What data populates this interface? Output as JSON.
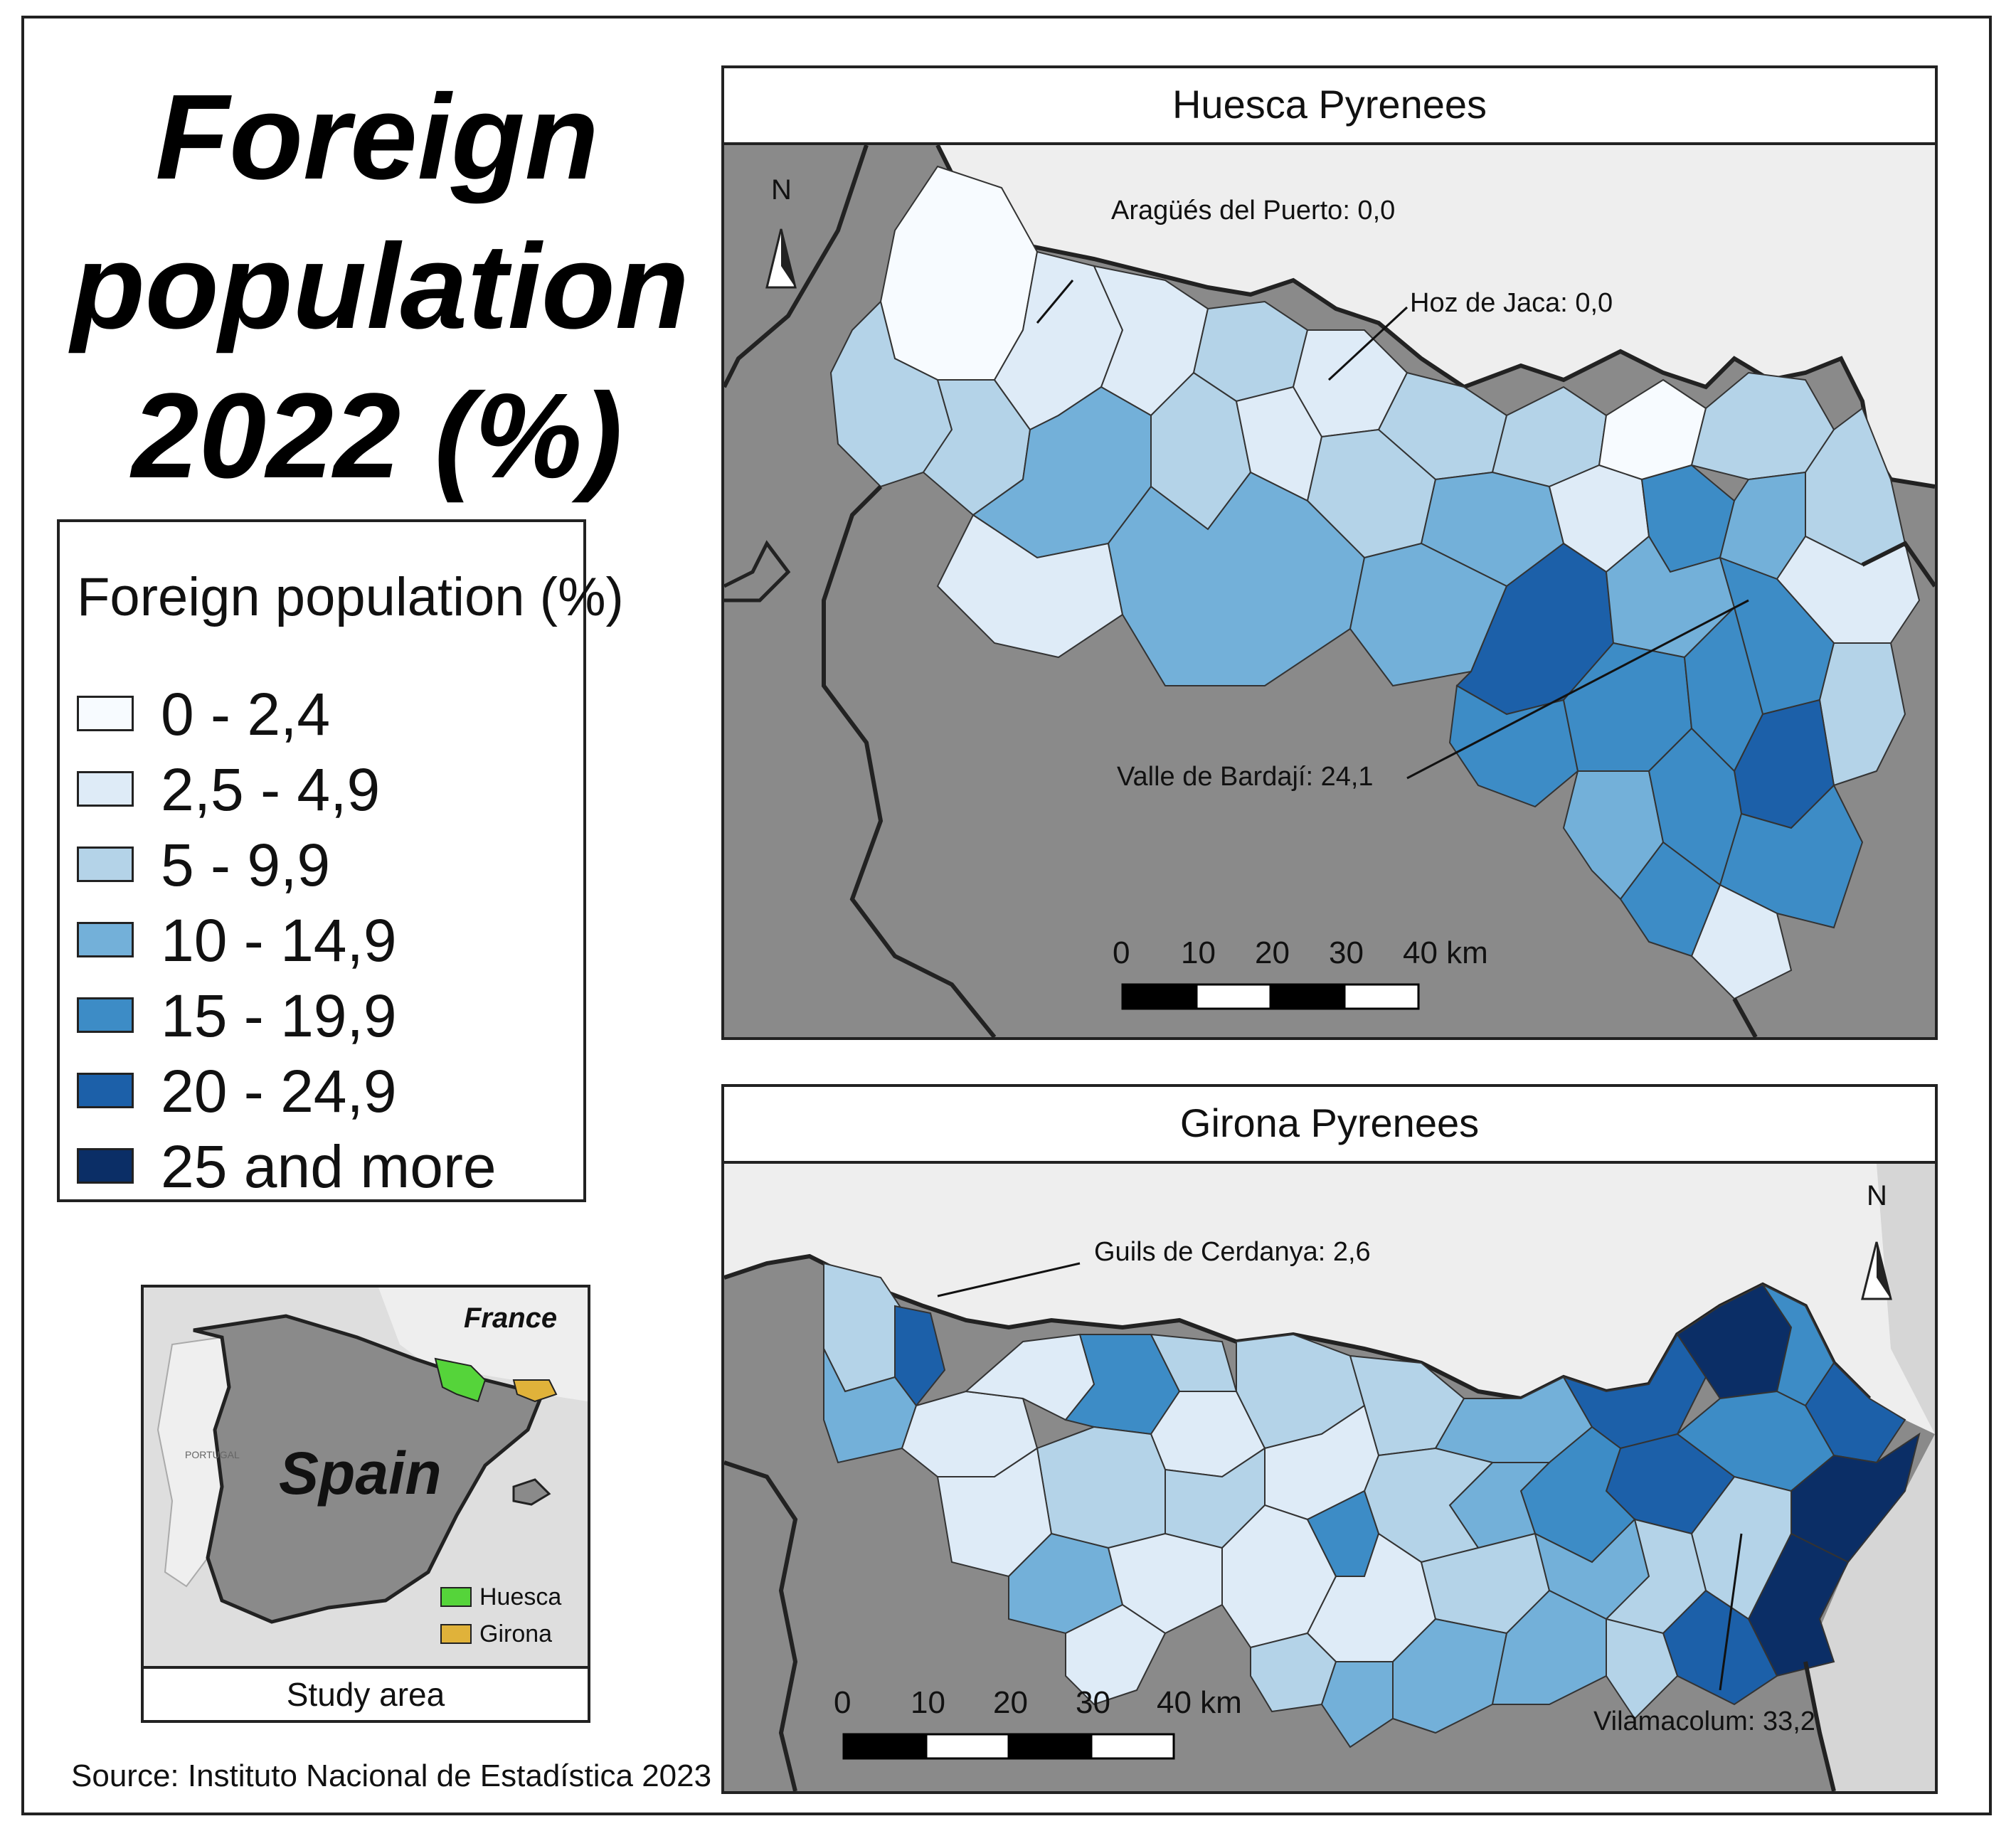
{
  "title_lines": [
    "Foreign",
    "population",
    "2022 (%)"
  ],
  "legend": {
    "title": "Foreign population (%)",
    "items": [
      {
        "label": "0 - 2,4",
        "color": "#f7fbff"
      },
      {
        "label": "2,5 - 4,9",
        "color": "#deebf7"
      },
      {
        "label": "5 - 9,9",
        "color": "#b4d3e8"
      },
      {
        "label": "10 - 14,9",
        "color": "#73b0d9"
      },
      {
        "label": "15 - 19,9",
        "color": "#3d8cc6"
      },
      {
        "label": "20 - 24,9",
        "color": "#1c60a9"
      },
      {
        "label": "25 and more",
        "color": "#0b2e66"
      }
    ]
  },
  "huesca": {
    "title": "Huesca Pyrenees",
    "north": "N",
    "labels": {
      "aragues": "Aragüés del Puerto: 0,0",
      "hoz": "Hoz de Jaca: 0,0",
      "valle": "Valle de Bardají: 24,1"
    },
    "scale": [
      "0",
      "10",
      "20",
      "30",
      "40 km"
    ]
  },
  "girona": {
    "title": "Girona Pyrenees",
    "north": "N",
    "labels": {
      "guils": "Guils de Cerdanya: 2,6",
      "vilamacolum": "Vilamacolum: 33,2"
    },
    "scale": [
      "0",
      "10",
      "20",
      "30",
      "40 km"
    ]
  },
  "inset": {
    "france": "France",
    "spain": "Spain",
    "portugal": "PORTUGAL",
    "legend": [
      {
        "label": "Huesca",
        "color": "#55d43a"
      },
      {
        "label": "Girona",
        "color": "#e0b23a"
      }
    ],
    "caption": "Study area"
  },
  "source": "Source: Instituto Nacional de Estadística 2023"
}
